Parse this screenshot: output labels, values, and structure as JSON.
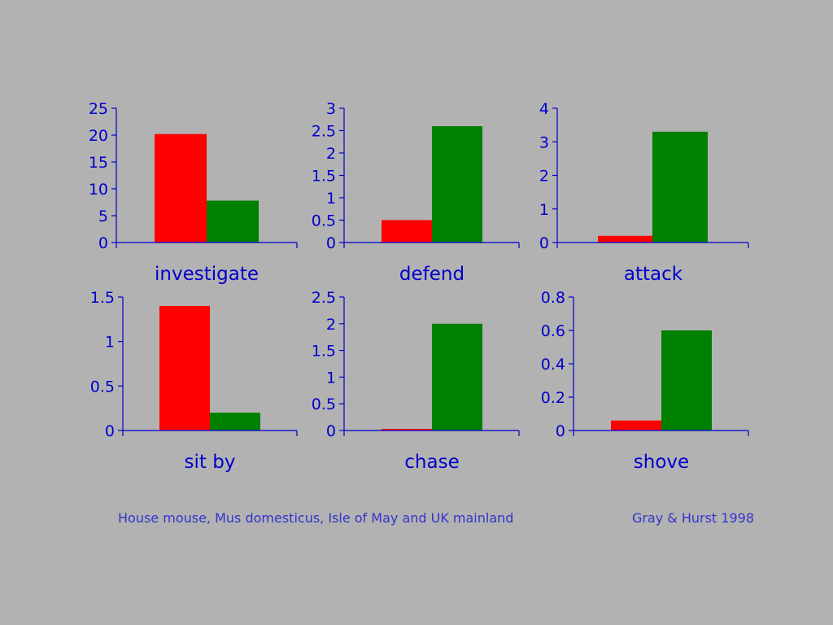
{
  "colors": {
    "series_a": "#ff0000",
    "series_b": "#008000",
    "axis": "#0000cc",
    "background": "#b2b2b2"
  },
  "caption_left": "House mouse, Mus domesticus, Isle of May and UK mainland",
  "caption_right": "Gray & Hurst 1998",
  "chart_data": [
    {
      "type": "bar",
      "xlabel": "investigate",
      "ylim": [
        0,
        25
      ],
      "yticks": [
        "0",
        "5",
        "10",
        "15",
        "20",
        "25"
      ],
      "values": [
        20.2,
        7.8
      ]
    },
    {
      "type": "bar",
      "xlabel": "defend",
      "ylim": [
        0,
        3
      ],
      "yticks": [
        "0",
        "0.5",
        "1",
        "1.5",
        "2",
        "2.5",
        "3"
      ],
      "values": [
        0.5,
        2.6
      ]
    },
    {
      "type": "bar",
      "xlabel": "attack",
      "ylim": [
        0,
        4
      ],
      "yticks": [
        "0",
        "1",
        "2",
        "3",
        "4"
      ],
      "values": [
        0.2,
        3.3
      ]
    },
    {
      "type": "bar",
      "xlabel": "sit by",
      "ylim": [
        0,
        1.5
      ],
      "yticks": [
        "0",
        "0.5",
        "1",
        "1.5"
      ],
      "values": [
        1.4,
        0.2
      ]
    },
    {
      "type": "bar",
      "xlabel": "chase",
      "ylim": [
        0,
        2.5
      ],
      "yticks": [
        "0",
        "0.5",
        "1",
        "1.5",
        "2",
        "2.5"
      ],
      "values": [
        0.03,
        2.0
      ]
    },
    {
      "type": "bar",
      "xlabel": "shove",
      "ylim": [
        0,
        0.8
      ],
      "yticks": [
        "0",
        "0.2",
        "0.4",
        "0.6",
        "0.8"
      ],
      "values": [
        0.06,
        0.6
      ]
    }
  ]
}
